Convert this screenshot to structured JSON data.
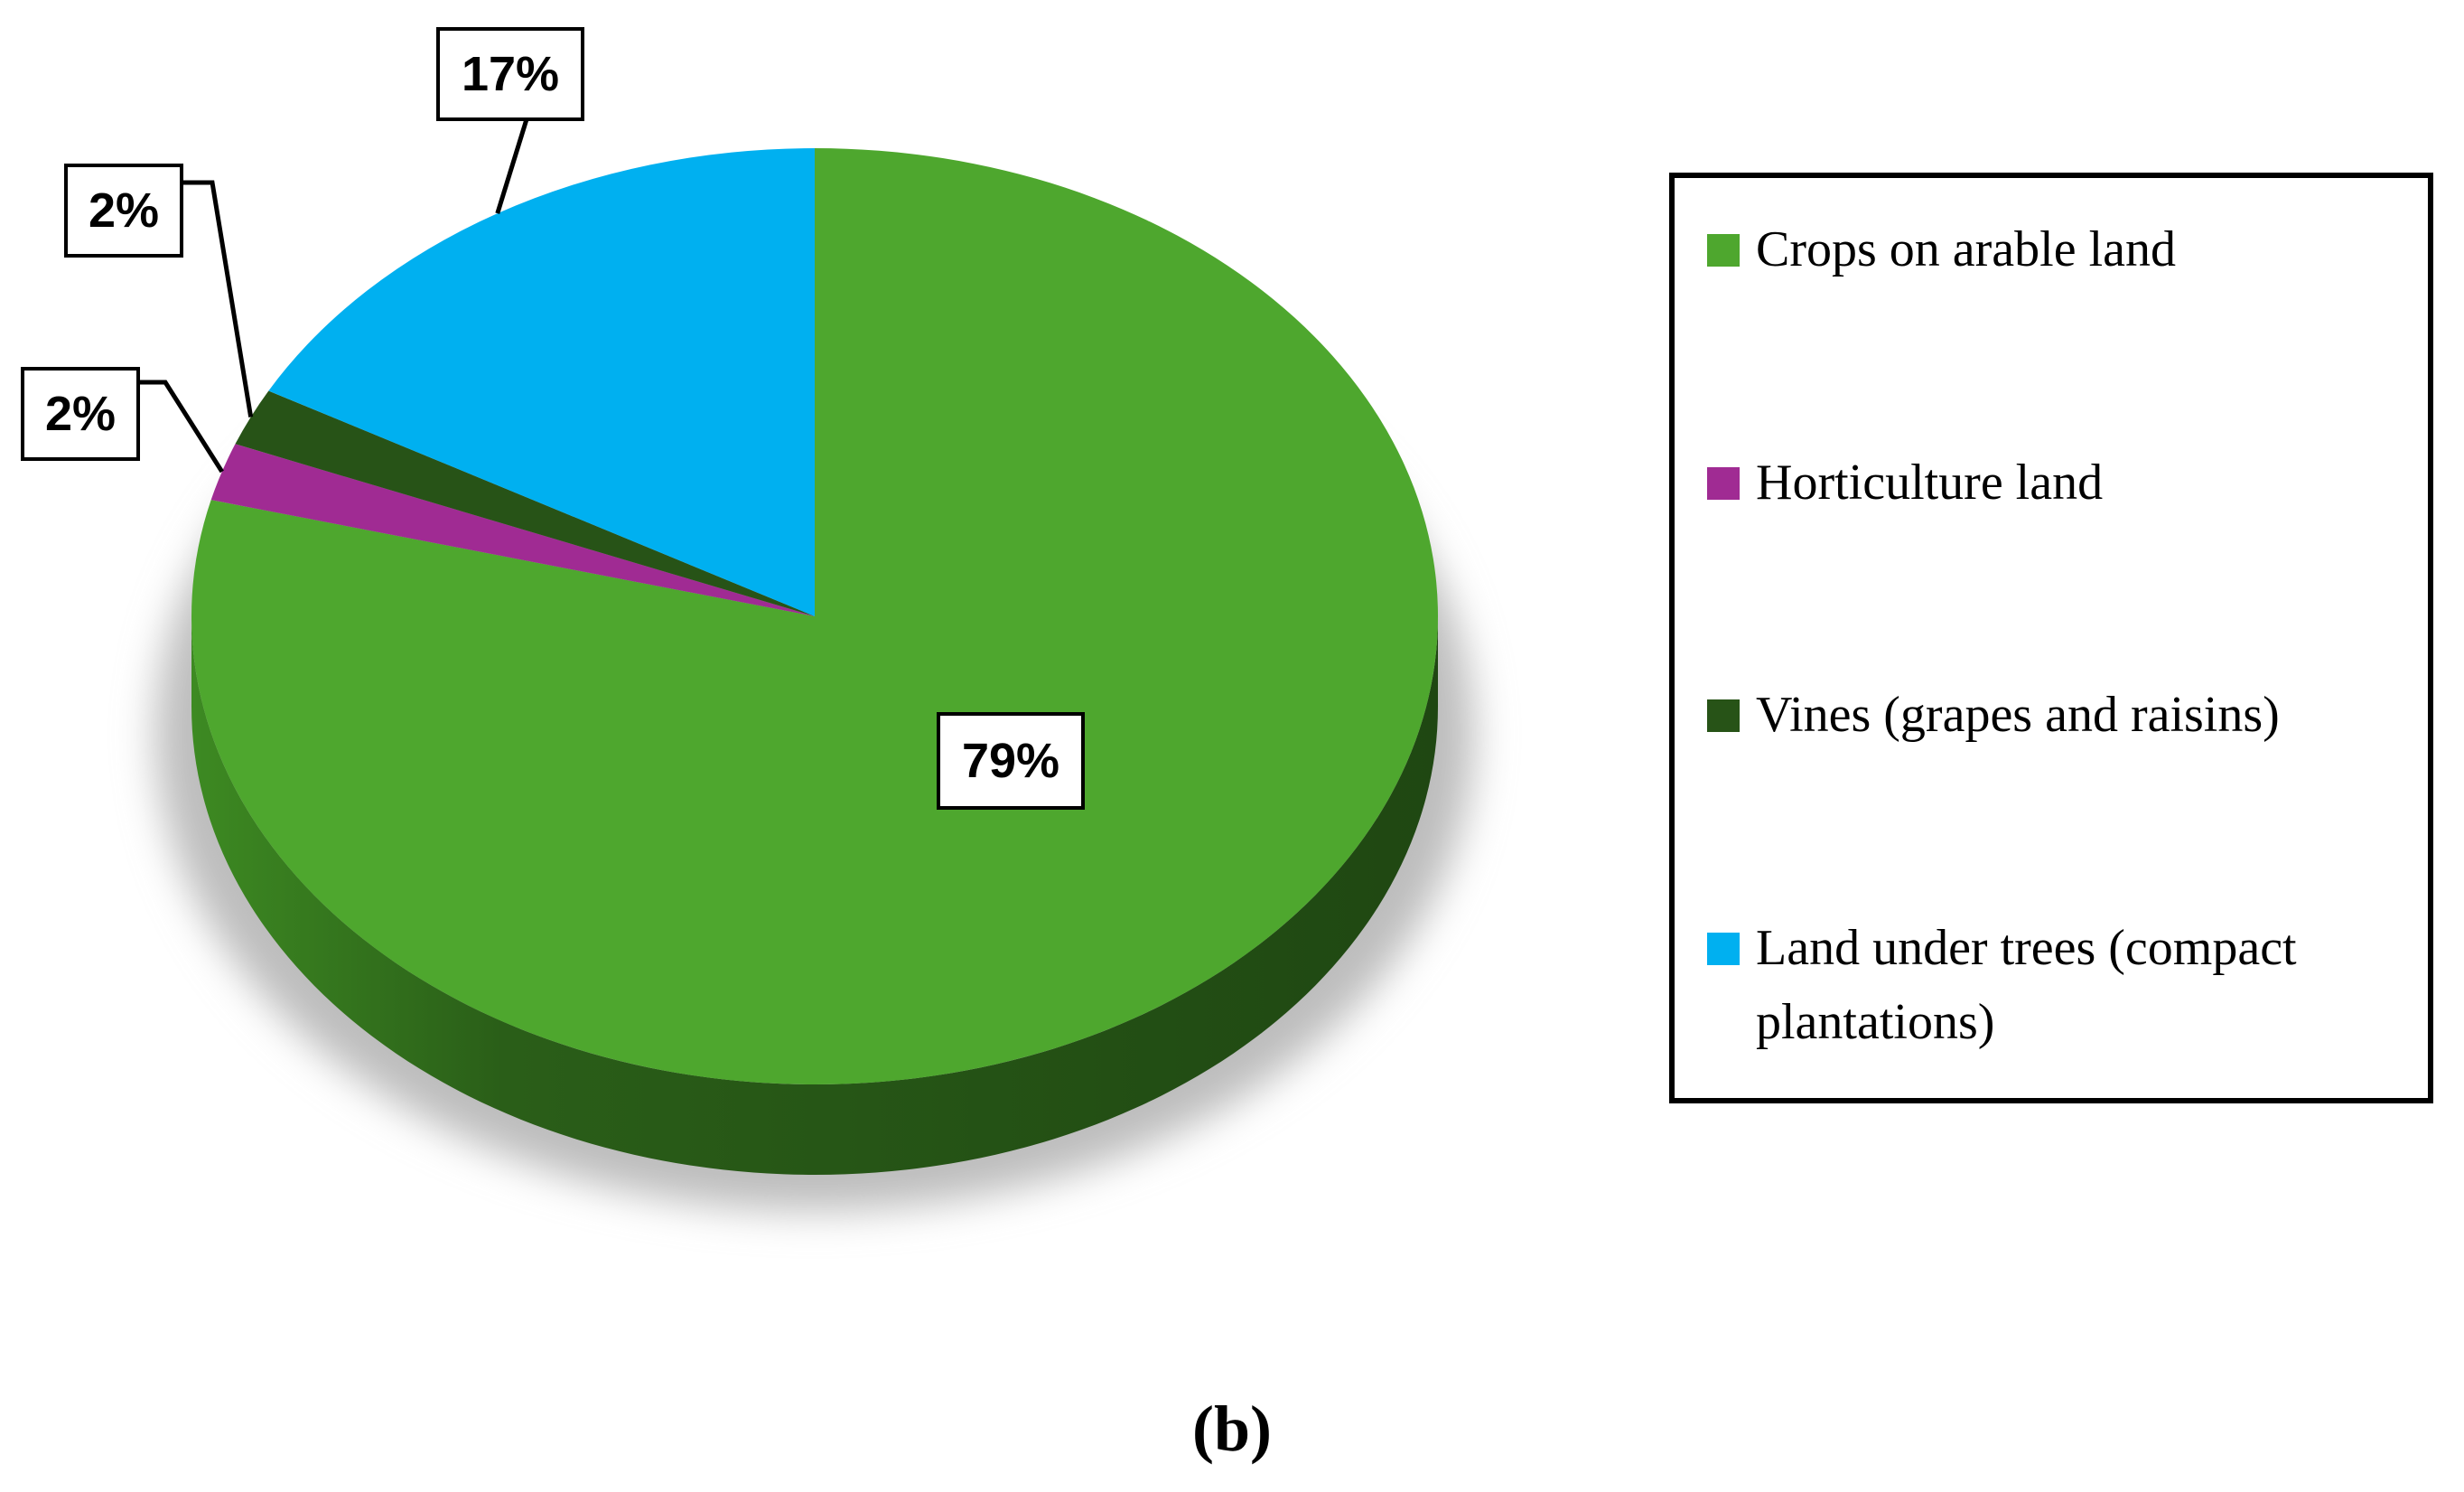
{
  "chart_data": {
    "type": "pie",
    "categories": [
      "Crops on arable land",
      "Horticulture land",
      "Vines (grapes and raisins)",
      "Land under trees (compact plantations)"
    ],
    "values": [
      79,
      2,
      2,
      17
    ],
    "value_labels": [
      "79%",
      "2%",
      "2%",
      "17%"
    ],
    "colors": [
      "#4ea72e",
      "#a02b93",
      "#275317",
      "#00b0f0"
    ],
    "caption": "(b)"
  }
}
